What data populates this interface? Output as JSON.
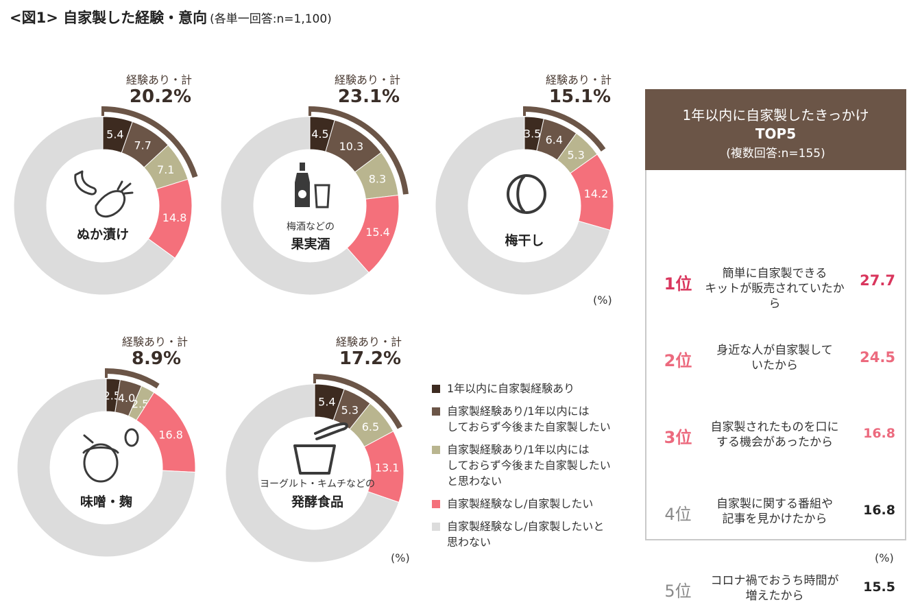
{
  "title": {
    "main": "<図1> 自家製した経験・意向",
    "sub": "(各単一回答:n=1,100)"
  },
  "colors": {
    "within_year": "#3d2b20",
    "exp_want": "#6b5547",
    "exp_not_want": "#b9b58f",
    "noexp_want": "#f4707b",
    "noexp_not_want": "#dcdcdc",
    "bracket": "#6b5547",
    "rank_red": "#d9365d",
    "rank_pink": "#ec6a7e"
  },
  "chart_data": [
    {
      "type": "pie",
      "name": "ぬか漬け",
      "center_label": "ぬか漬け",
      "total_label": "経験あり・計",
      "total_value": "20.2%",
      "icon": "cucumber-radish-icon",
      "values": [
        5.4,
        7.7,
        7.1,
        14.8,
        65.0
      ],
      "labels": [
        "5.4",
        "7.7",
        "7.1",
        "14.8",
        ""
      ]
    },
    {
      "type": "pie",
      "name": "果実酒",
      "center_sub": "梅酒などの",
      "center_label": "果実酒",
      "total_label": "経験あり・計",
      "total_value": "23.1%",
      "icon": "bottle-glass-icon",
      "values": [
        4.5,
        10.3,
        8.3,
        15.4,
        61.5
      ],
      "labels": [
        "4.5",
        "10.3",
        "8.3",
        "15.4",
        ""
      ]
    },
    {
      "type": "pie",
      "name": "梅干し",
      "center_label": "梅干し",
      "total_label": "経験あり・計",
      "total_value": "15.1%",
      "icon": "plum-icon",
      "values": [
        3.5,
        6.4,
        5.3,
        14.2,
        70.6
      ],
      "labels": [
        "3.5",
        "6.4",
        "5.3",
        "14.2",
        ""
      ]
    },
    {
      "type": "pie",
      "name": "味噌・麹",
      "center_label": "味噌・麹",
      "total_label": "経験あり・計",
      "total_value": "8.9%",
      "icon": "miso-pot-icon",
      "values": [
        2.5,
        4.0,
        2.5,
        16.8,
        74.2
      ],
      "labels": [
        "2.5",
        "4.0",
        "2.5",
        "16.8",
        ""
      ]
    },
    {
      "type": "pie",
      "name": "発酵食品",
      "center_sub": "ヨーグルト・キムチなどの",
      "center_label": "発酵食品",
      "total_label": "経験あり・計",
      "total_value": "17.2%",
      "icon": "yogurt-bowl-icon",
      "values": [
        5.4,
        5.3,
        6.5,
        13.1,
        69.7
      ],
      "labels": [
        "5.4",
        "5.3",
        "6.5",
        "13.1",
        ""
      ]
    }
  ],
  "units": {
    "top_row": "(%)",
    "bottom_row": "(%)",
    "ranking": "(%)"
  },
  "legend": [
    "1年以内に自家製経験あり",
    "自家製経験あり/1年以内には\nしておらず今後また自家製したい",
    "自家製経験あり/1年以内には\nしておらず今後また自家製したい\nと思わない",
    "自家製経験なし/自家製したい",
    "自家製経験なし/自家製したいと\n思わない"
  ],
  "ranking": {
    "header_line1": "1年以内に自家製したきっかけ",
    "header_line2": "TOP5",
    "header_line3": "(複数回答:n=155)",
    "items": [
      {
        "rank": "1位",
        "reason": "簡単に自家製できる\nキットが販売されていたから",
        "value": "27.7"
      },
      {
        "rank": "2位",
        "reason": "身近な人が自家製して\nいたから",
        "value": "24.5"
      },
      {
        "rank": "3位",
        "reason": "自家製されたものを口に\nする機会があったから",
        "value": "16.8"
      },
      {
        "rank": "4位",
        "reason": "自家製に関する番組や\n記事を見かけたから",
        "value": "16.8"
      },
      {
        "rank": "5位",
        "reason": "コロナ禍でおうち時間が\n増えたから",
        "value": "15.5"
      }
    ]
  }
}
